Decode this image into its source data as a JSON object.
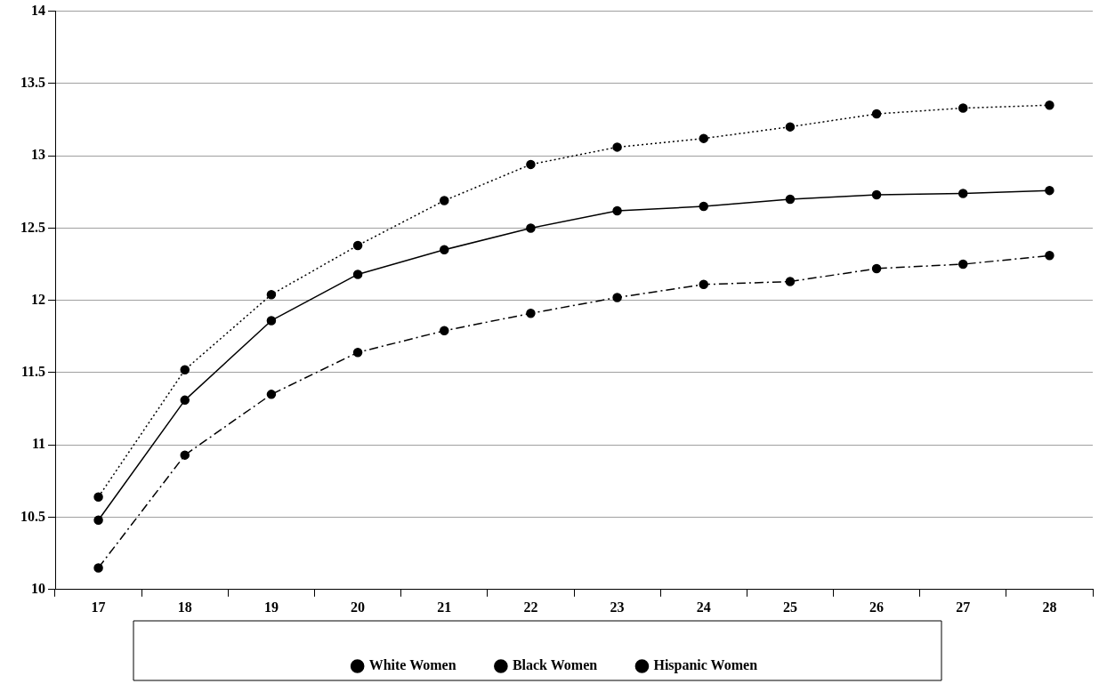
{
  "chart_data": {
    "type": "line",
    "categories": [
      "17",
      "18",
      "19",
      "20",
      "21",
      "22",
      "23",
      "24",
      "25",
      "26",
      "27",
      "28"
    ],
    "series": [
      {
        "name": "White Women",
        "color": "#000000",
        "line_style": "dotted",
        "values": [
          10.64,
          11.52,
          12.04,
          12.38,
          12.69,
          12.94,
          13.06,
          13.12,
          13.2,
          13.29,
          13.33,
          13.35
        ]
      },
      {
        "name": "Black Women",
        "color": "#000000",
        "line_style": "solid",
        "values": [
          10.48,
          11.31,
          11.86,
          12.18,
          12.35,
          12.5,
          12.62,
          12.65,
          12.7,
          12.73,
          12.74,
          12.76
        ]
      },
      {
        "name": "Hispanic Women",
        "color": "#000000",
        "line_style": "dashdot",
        "values": [
          10.15,
          10.93,
          11.35,
          11.64,
          11.79,
          11.91,
          12.02,
          12.11,
          12.13,
          12.22,
          12.25,
          12.31
        ]
      }
    ],
    "ylim": [
      10,
      14
    ],
    "yticks": [
      10,
      10.5,
      11,
      11.5,
      12,
      12.5,
      13,
      13.5,
      14
    ],
    "grid": "y",
    "legend": "bottom",
    "marker": "circle"
  }
}
